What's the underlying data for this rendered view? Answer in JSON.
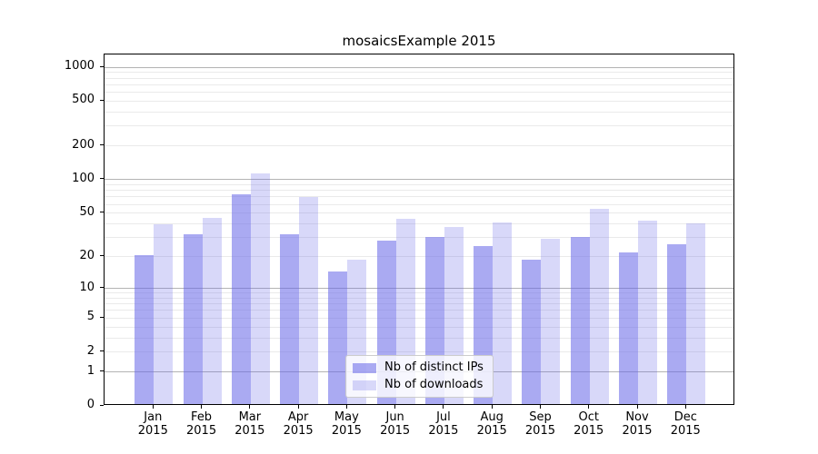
{
  "title": "mosaicsExample 2015",
  "chart_data": {
    "type": "bar",
    "title": "mosaicsExample 2015",
    "categories": [
      "Jan 2015",
      "Feb 2015",
      "Mar 2015",
      "Apr 2015",
      "May 2015",
      "Jun 2015",
      "Jul 2015",
      "Aug 2015",
      "Sep 2015",
      "Oct 2015",
      "Nov 2015",
      "Dec 2015"
    ],
    "series": [
      {
        "name": "Nb of distinct IPs",
        "color": "#6464e8",
        "alpha": 0.55,
        "values": [
          20,
          31,
          71,
          31,
          14,
          27,
          29,
          24,
          18,
          29,
          21,
          25
        ]
      },
      {
        "name": "Nb of downloads",
        "color": "#6464e8",
        "alpha": 0.25,
        "values": [
          38,
          44,
          110,
          67,
          18,
          43,
          36,
          40,
          28,
          53,
          41,
          39
        ]
      }
    ],
    "xlabel": "",
    "ylabel": "",
    "y_scale": "log10(1+v)",
    "y_ticks": [
      0,
      1,
      2,
      5,
      10,
      20,
      50,
      100,
      200,
      500,
      1000
    ],
    "y_major_gridlines": [
      1,
      10,
      100,
      1000
    ],
    "ylim": [
      0,
      1330
    ],
    "grid": true,
    "legend_position": "lower center",
    "colors": {
      "grid_major": "#b3b3b3",
      "grid_minor": "#eaeaea",
      "axis": "#000000",
      "legend_border": "#cccccc"
    }
  }
}
